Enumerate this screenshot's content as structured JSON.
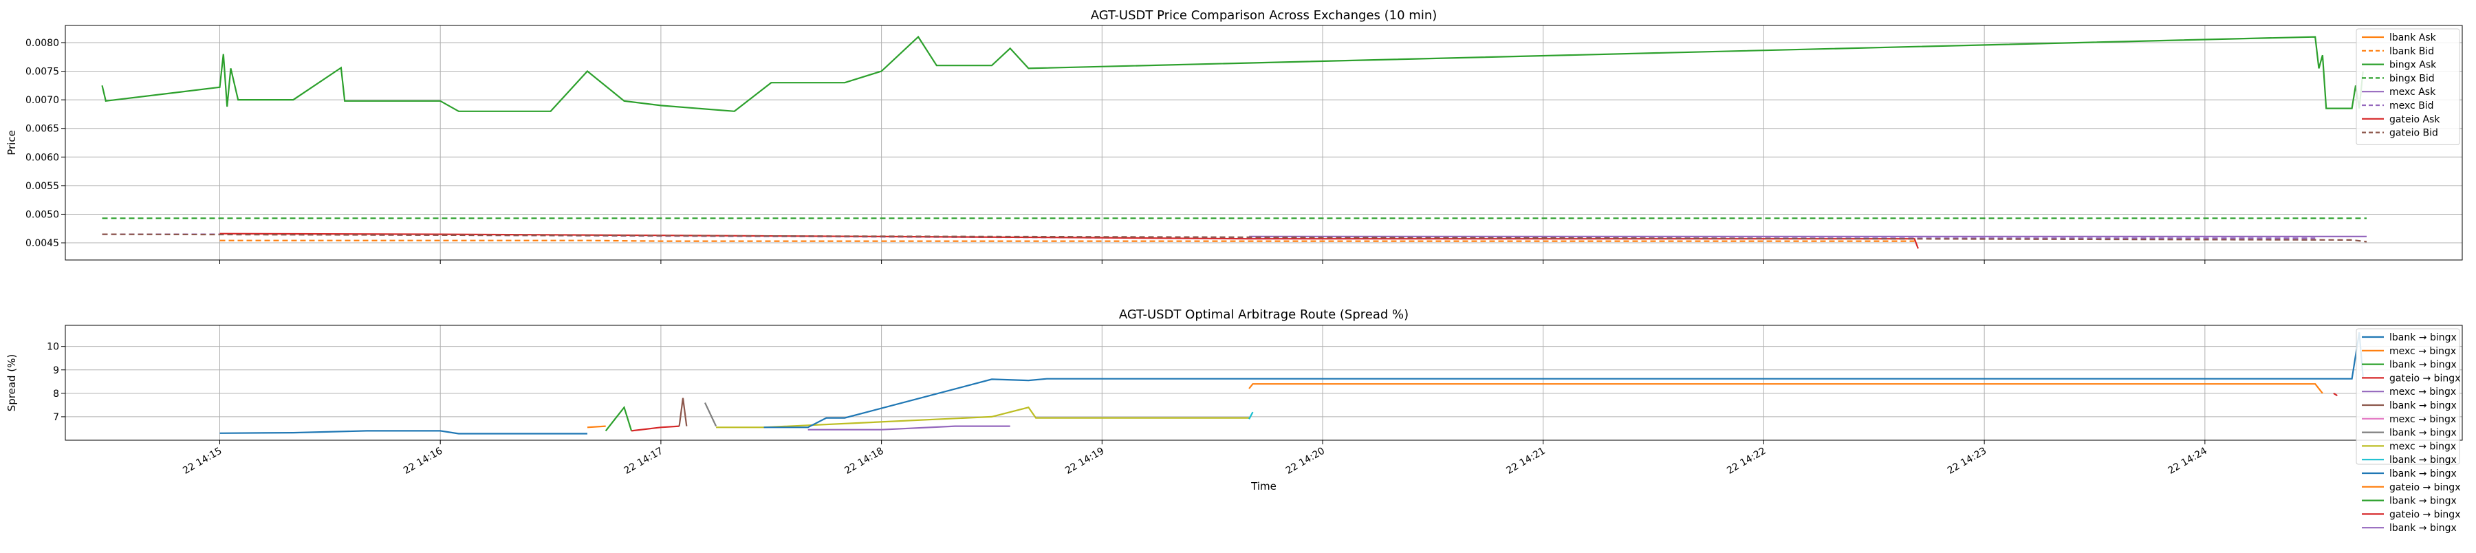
{
  "chart_data": [
    {
      "type": "line",
      "title": "AGT-USDT Price Comparison Across Exchanges (10 min)",
      "ylabel": "Price",
      "xlabel": "",
      "xlim": [
        "22 14:14:18",
        "22 14:25:10"
      ],
      "ylim": [
        0.0042,
        0.0083
      ],
      "y_ticks": [
        "0.0045",
        "0.0050",
        "0.0055",
        "0.0060",
        "0.0065",
        "0.0070",
        "0.0075",
        "0.0080"
      ],
      "grid": true,
      "legend": "top-right",
      "colors": {
        "lbank": "#ff7f0e",
        "bingx": "#2ca02c",
        "mexc": "#9467bd",
        "gateio": "#d62728"
      },
      "series": [
        {
          "name": "lbank Ask",
          "style": "solid",
          "color": "#ff7f0e",
          "points": []
        },
        {
          "name": "lbank Bid",
          "style": "dashed",
          "color": "#ff7f0e",
          "points": [
            [
              "22 14:15:00",
              0.00454
            ],
            [
              "22 14:16:40",
              0.00454
            ],
            [
              "22 14:17:00",
              0.00453
            ],
            [
              "22 14:22:41",
              0.00453
            ]
          ]
        },
        {
          "name": "bingx Ask",
          "style": "solid",
          "color": "#2ca02c",
          "points": [
            [
              "22 14:14:28",
              0.00725
            ],
            [
              "22 14:14:29",
              0.00698
            ],
            [
              "22 14:15:00",
              0.00722
            ],
            [
              "22 14:15:01",
              0.0078
            ],
            [
              "22 14:15:02",
              0.00688
            ],
            [
              "22 14:15:03",
              0.00755
            ],
            [
              "22 14:15:05",
              0.007
            ],
            [
              "22 14:15:20",
              0.007
            ],
            [
              "22 14:15:33",
              0.00756
            ],
            [
              "22 14:15:34",
              0.00698
            ],
            [
              "22 14:16:00",
              0.00698
            ],
            [
              "22 14:16:05",
              0.0068
            ],
            [
              "22 14:16:30",
              0.0068
            ],
            [
              "22 14:16:40",
              0.0075
            ],
            [
              "22 14:16:50",
              0.00698
            ],
            [
              "22 14:17:00",
              0.0069
            ],
            [
              "22 14:17:20",
              0.0068
            ],
            [
              "22 14:17:30",
              0.0073
            ],
            [
              "22 14:17:50",
              0.0073
            ],
            [
              "22 14:18:00",
              0.0075
            ],
            [
              "22 14:18:10",
              0.0081
            ],
            [
              "22 14:18:15",
              0.0076
            ],
            [
              "22 14:18:30",
              0.0076
            ],
            [
              "22 14:18:35",
              0.0079
            ],
            [
              "22 14:18:40",
              0.00755
            ],
            [
              "22 14:24:30",
              0.0081
            ],
            [
              "22 14:24:31",
              0.00755
            ],
            [
              "22 14:24:32",
              0.00778
            ],
            [
              "22 14:24:33",
              0.00685
            ],
            [
              "22 14:24:40",
              0.00685
            ],
            [
              "22 14:24:41",
              0.00725
            ],
            [
              "22 14:24:42",
              0.00685
            ],
            [
              "22 14:24:43",
              0.0075
            ]
          ]
        },
        {
          "name": "bingx Bid",
          "style": "dashed",
          "color": "#2ca02c",
          "points": [
            [
              "22 14:14:28",
              0.00493
            ],
            [
              "22 14:24:44",
              0.00493
            ]
          ]
        },
        {
          "name": "mexc Ask",
          "style": "solid",
          "color": "#9467bd",
          "points": [
            [
              "22 14:19:40",
              0.00461
            ],
            [
              "22 14:24:44",
              0.00461
            ]
          ]
        },
        {
          "name": "mexc Bid",
          "style": "dashed",
          "color": "#9467bd",
          "points": [
            [
              "22 14:14:28",
              0.00465
            ],
            [
              "22 14:15:00",
              0.00465
            ],
            [
              "22 14:19:40",
              0.00458
            ],
            [
              "22 14:24:30",
              0.00458
            ]
          ]
        },
        {
          "name": "gateio Ask",
          "style": "solid",
          "color": "#d62728",
          "points": [
            [
              "22 14:15:00",
              0.00466
            ],
            [
              "22 14:16:00",
              0.00465
            ],
            [
              "22 14:17:00",
              0.00463
            ],
            [
              "22 14:18:00",
              0.00461
            ],
            [
              "22 14:19:00",
              0.00459
            ],
            [
              "22 14:19:40",
              0.00457
            ],
            [
              "22 14:22:41",
              0.00457
            ],
            [
              "22 14:22:42",
              0.0044
            ]
          ]
        },
        {
          "name": "gateio Bid",
          "style": "dashed",
          "color": "#8c564b",
          "points": [
            [
              "22 14:14:28",
              0.00465
            ],
            [
              "22 14:24:40",
              0.00455
            ],
            [
              "22 14:24:44",
              0.00452
            ]
          ]
        }
      ]
    },
    {
      "type": "line",
      "title": "AGT-USDT Optimal Arbitrage Route (Spread %)",
      "ylabel": "Spread (%)",
      "xlabel": "Time",
      "xlim": [
        "22 14:14:18",
        "22 14:25:10"
      ],
      "ylim": [
        6.0,
        10.9
      ],
      "y_ticks": [
        "7",
        "8",
        "9",
        "10"
      ],
      "x_ticks": [
        "22 14:15",
        "22 14:16",
        "22 14:17",
        "22 14:18",
        "22 14:19",
        "22 14:20",
        "22 14:21",
        "22 14:22",
        "22 14:23",
        "22 14:24"
      ],
      "grid": true,
      "legend": "top-right",
      "series": [
        {
          "name": "lbank → bingx",
          "color": "#1f77b4",
          "points": [
            [
              "22 14:15:00",
              6.3
            ],
            [
              "22 14:15:20",
              6.32
            ],
            [
              "22 14:15:40",
              6.4
            ],
            [
              "22 14:16:00",
              6.4
            ],
            [
              "22 14:16:05",
              6.28
            ],
            [
              "22 14:16:40",
              6.28
            ]
          ]
        },
        {
          "name": "mexc → bingx",
          "color": "#ff7f0e",
          "points": [
            [
              "22 14:16:40",
              6.55
            ],
            [
              "22 14:16:45",
              6.6
            ]
          ]
        },
        {
          "name": "lbank → bingx",
          "color": "#2ca02c",
          "points": [
            [
              "22 14:16:45",
              6.4
            ],
            [
              "22 14:16:50",
              7.4
            ],
            [
              "22 14:16:52",
              6.4
            ]
          ]
        },
        {
          "name": "gateio → bingx",
          "color": "#d62728",
          "points": [
            [
              "22 14:16:52",
              6.4
            ],
            [
              "22 14:17:00",
              6.55
            ],
            [
              "22 14:17:05",
              6.6
            ]
          ]
        },
        {
          "name": "mexc → bingx",
          "color": "#9467bd",
          "points": []
        },
        {
          "name": "lbank → bingx",
          "color": "#8c564b",
          "points": [
            [
              "22 14:17:05",
              6.6
            ],
            [
              "22 14:17:06",
              7.8
            ],
            [
              "22 14:17:07",
              6.6
            ]
          ]
        },
        {
          "name": "mexc → bingx",
          "color": "#e377c2",
          "points": []
        },
        {
          "name": "lbank → bingx",
          "color": "#7f7f7f",
          "points": [
            [
              "22 14:17:12",
              7.6
            ],
            [
              "22 14:17:15",
              6.6
            ]
          ]
        },
        {
          "name": "mexc → bingx",
          "color": "#bcbd22",
          "points": [
            [
              "22 14:17:15",
              6.55
            ],
            [
              "22 14:17:28",
              6.55
            ],
            [
              "22 14:18:30",
              7.0
            ],
            [
              "22 14:18:40",
              7.4
            ],
            [
              "22 14:18:42",
              6.95
            ],
            [
              "22 14:19:40",
              6.95
            ]
          ]
        },
        {
          "name": "lbank → bingx",
          "color": "#17becf",
          "points": [
            [
              "22 14:19:40",
              6.9
            ],
            [
              "22 14:19:41",
              7.2
            ]
          ]
        },
        {
          "name": "lbank → bingx",
          "color": "#1f77b4",
          "points": [
            [
              "22 14:17:28",
              6.55
            ],
            [
              "22 14:17:40",
              6.55
            ],
            [
              "22 14:17:45",
              6.95
            ],
            [
              "22 14:17:50",
              6.95
            ],
            [
              "22 14:18:30",
              8.6
            ],
            [
              "22 14:18:40",
              8.55
            ],
            [
              "22 14:18:45",
              8.62
            ],
            [
              "22 14:24:40",
              8.62
            ],
            [
              "22 14:24:42",
              10.6
            ],
            [
              "22 14:24:43",
              8.7
            ]
          ]
        },
        {
          "name": "gateio → bingx",
          "color": "#ff7f0e",
          "points": [
            [
              "22 14:19:40",
              8.2
            ],
            [
              "22 14:19:41",
              8.4
            ],
            [
              "22 14:24:30",
              8.4
            ],
            [
              "22 14:24:32",
              8.0
            ]
          ]
        },
        {
          "name": "lbank → bingx",
          "color": "#2ca02c",
          "points": []
        },
        {
          "name": "gateio → bingx",
          "color": "#d62728",
          "points": [
            [
              "22 14:24:35",
              8.0
            ],
            [
              "22 14:24:36",
              7.9
            ]
          ]
        },
        {
          "name": "lbank → bingx",
          "color": "#9467bd",
          "points": [
            [
              "22 14:17:40",
              6.45
            ],
            [
              "22 14:18:00",
              6.45
            ],
            [
              "22 14:18:20",
              6.6
            ],
            [
              "22 14:18:35",
              6.6
            ]
          ]
        }
      ]
    }
  ]
}
